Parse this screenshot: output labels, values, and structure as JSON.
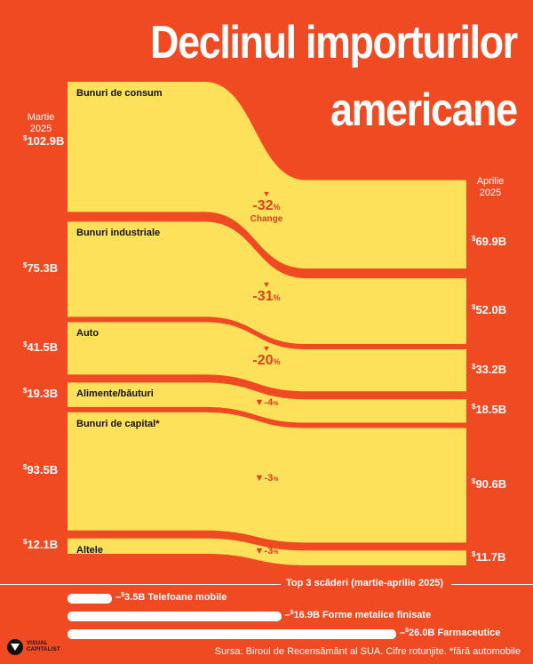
{
  "title_line1": "Declinul importurilor",
  "title_line2": "americane",
  "left_label": "Martie\n2025",
  "right_label": "Aprilie\n2025",
  "colors": {
    "background": "#f04a23",
    "band": "#fde15a",
    "text_dark": "#111111",
    "accent": "#e0401e"
  },
  "chart_data": {
    "type": "area",
    "x": [
      "Martie 2025",
      "Aprilie 2025"
    ],
    "unit": "$ miliarde",
    "series": [
      {
        "name": "Bunuri de consum",
        "march": 102.9,
        "april": 69.9,
        "change_pct": -32,
        "march_label": "102.9B",
        "april_label": "69.9B",
        "change_label": "-32",
        "note": "Change"
      },
      {
        "name": "Bunuri industriale",
        "march": 75.3,
        "april": 52.0,
        "change_pct": -31,
        "march_label": "75.3B",
        "april_label": "52.0B",
        "change_label": "-31",
        "note": ""
      },
      {
        "name": "Auto",
        "march": 41.5,
        "april": 33.2,
        "change_pct": -20,
        "march_label": "41.5B",
        "april_label": "33.2B",
        "change_label": "-20",
        "note": ""
      },
      {
        "name": "Alimente/băuturi",
        "march": 19.3,
        "april": 18.5,
        "change_pct": -4,
        "march_label": "19.3B",
        "april_label": "18.5B",
        "change_label": "-4",
        "note": ""
      },
      {
        "name": "Bunuri de capital*",
        "march": 93.5,
        "april": 90.6,
        "change_pct": -3,
        "march_label": "93.5B",
        "april_label": "90.6B",
        "change_label": "-3",
        "note": ""
      },
      {
        "name": "Altele",
        "march": 12.1,
        "april": 11.7,
        "change_pct": -3,
        "march_label": "12.1B",
        "april_label": "11.7B",
        "change_label": "-3",
        "note": ""
      }
    ]
  },
  "top3": {
    "title": "Top 3 scăderi (martie-aprilie 2025)",
    "items": [
      {
        "value": 3.5,
        "label": "3.5B",
        "name": "Telefoane mobile"
      },
      {
        "value": 16.9,
        "label": "16.9B",
        "name": "Forme metalice finisate"
      },
      {
        "value": 26.0,
        "label": "26.0B",
        "name": "Farmaceutice"
      }
    ]
  },
  "source": "Sursa: Biroul de Recensământ al SUA. Cifre rotunjite. *fără automobile",
  "logo": {
    "line1": "VISUAL",
    "line2": "CAPITALIST"
  }
}
